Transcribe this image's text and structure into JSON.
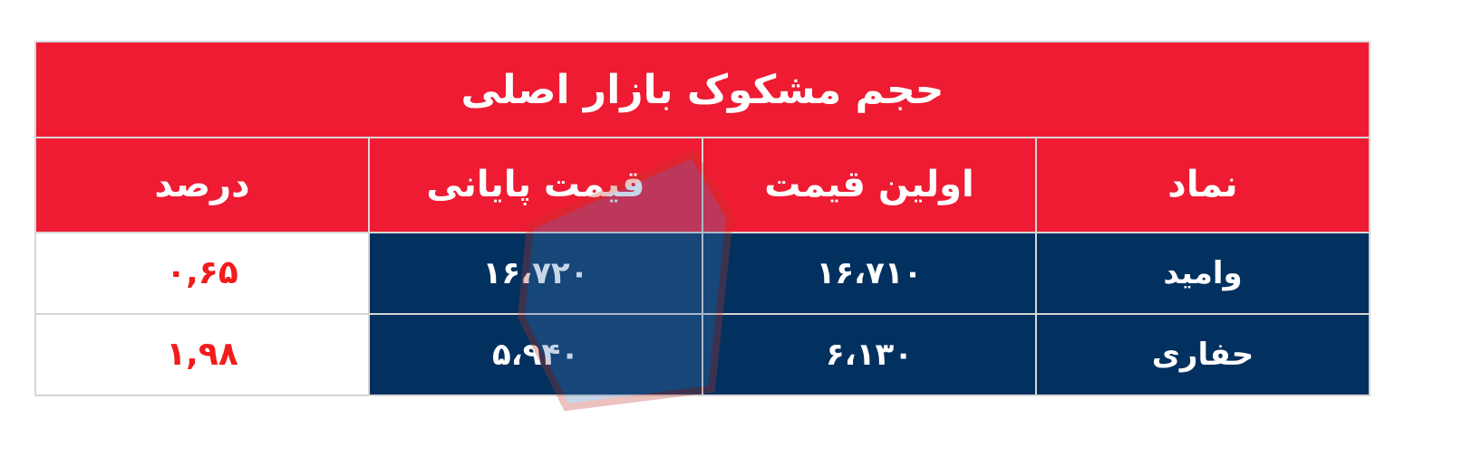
{
  "colors": {
    "header_bg": "#ee1b33",
    "body_bg": "#02305f",
    "percent_text": "#f11c1c",
    "grid": "#d6d6d6"
  },
  "chart_data": {
    "type": "table",
    "title": "حجم مشکوک بازار اصلی",
    "columns": [
      "نماد",
      "اولین قیمت",
      "قیمت پایانی",
      "درصد"
    ],
    "rows": [
      [
        "وامید",
        "۱۶،۷۱۰",
        "۱۶،۷۲۰",
        "۰,۶۵"
      ],
      [
        "حفاری",
        "۶،۱۳۰",
        "۵،۹۴۰",
        "۱,۹۸"
      ]
    ]
  }
}
